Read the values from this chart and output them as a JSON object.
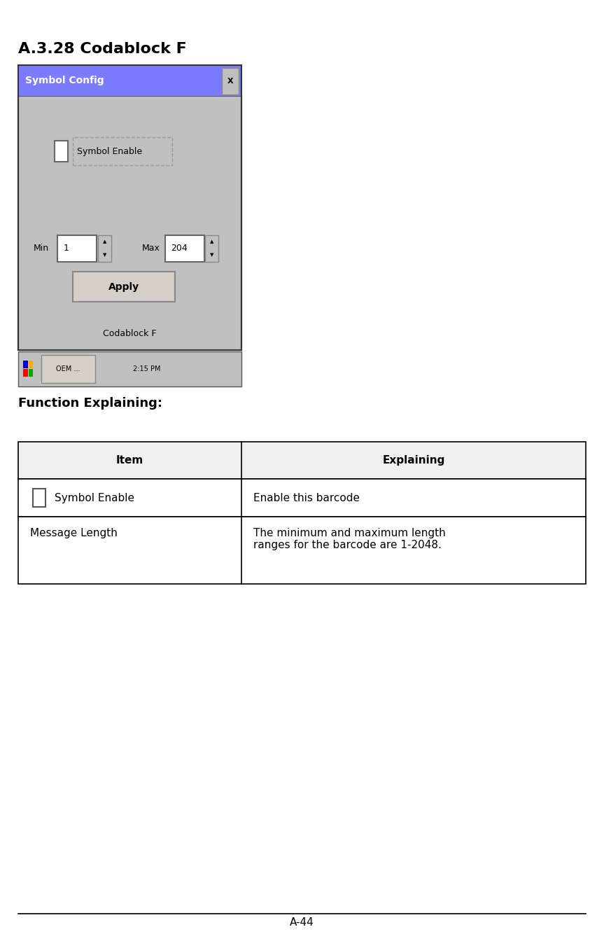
{
  "title": "A.3.28 Codablock F",
  "page_label": "A-44",
  "bg_color": "#ffffff",
  "dialog_title": "Symbol Config",
  "dialog_title_bg": "#7b7bff",
  "dialog_bg": "#c0c0c0",
  "checkbox_label": "Symbol Enable",
  "min_label": "Min",
  "min_value": "1",
  "max_label": "Max",
  "max_value": "204",
  "apply_label": "Apply",
  "codablock_label": "Codablock F",
  "function_heading": "Function Explaining:",
  "table_headers": [
    "Item",
    "Explaining"
  ],
  "table_row1_col1": "Symbol Enable",
  "table_row1_col2": "Enable this barcode",
  "table_row2_col1": "Message Length",
  "table_row2_col2": "The minimum and maximum length\nranges for the barcode are 1-2048.",
  "font_size_title": 16,
  "font_size_heading": 13,
  "font_size_table": 11,
  "font_size_page": 11
}
